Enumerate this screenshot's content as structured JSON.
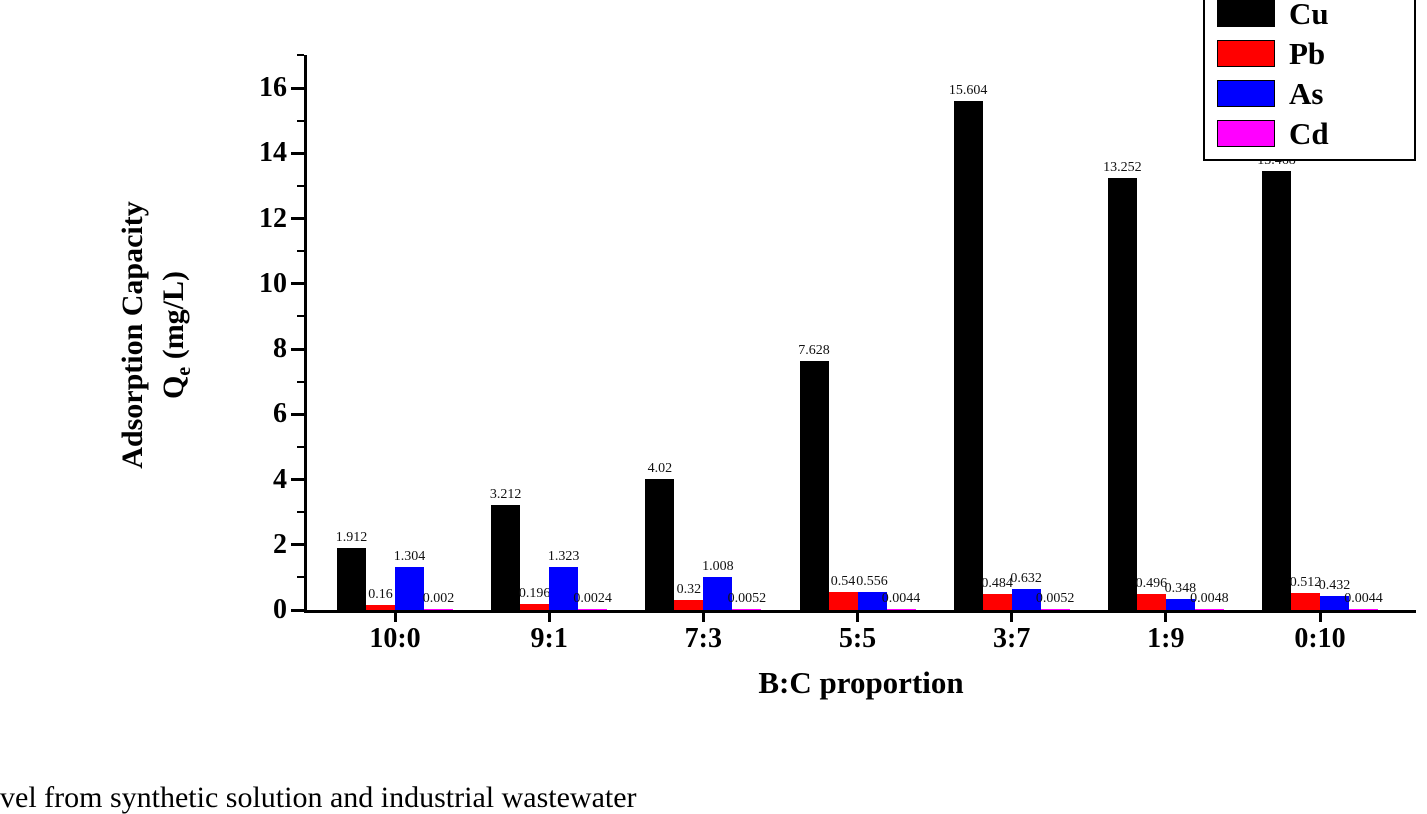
{
  "page": {
    "background": "#ffffff",
    "caption": "vel from synthetic solution and industrial wastewater"
  },
  "chart_data": {
    "type": "bar",
    "title": "",
    "xlabel": "B:C proportion",
    "ylabel_line1": "Adsorption Capacity",
    "ylabel_line2": {
      "main": "Q",
      "sub": "e",
      "rest": " (mg/L)"
    },
    "categories": [
      "10:0",
      "9:1",
      "7:3",
      "5:5",
      "3:7",
      "1:9",
      "0:10"
    ],
    "series": [
      {
        "name": "Cu",
        "color": "#000000",
        "values": [
          1.912,
          3.212,
          4.02,
          7.628,
          15.604,
          13.252,
          13.468
        ],
        "labels": [
          "1.912",
          "3.212",
          "4.02",
          "7.628",
          "15.604",
          "13.252",
          "13.468"
        ]
      },
      {
        "name": "Pb",
        "color": "#ff0000",
        "values": [
          0.16,
          0.196,
          0.32,
          0.54,
          0.484,
          0.496,
          0.512
        ],
        "labels": [
          "0.16",
          "0.196",
          "0.32",
          "0.54",
          "0.484",
          "0.496",
          "0.512"
        ]
      },
      {
        "name": "As",
        "color": "#0000ff",
        "values": [
          1.304,
          1.323,
          1.008,
          0.556,
          0.632,
          0.348,
          0.432
        ],
        "labels": [
          "1.304",
          "1.323",
          "1.008",
          "0.556",
          "0.632",
          "0.348",
          "0.432"
        ]
      },
      {
        "name": "Cd",
        "color": "#ff00ff",
        "values": [
          0.002,
          0.0024,
          0.0052,
          0.0044,
          0.0052,
          0.0048,
          0.0044
        ],
        "labels": [
          "0.002",
          "0.0024",
          "0.0052",
          "0.0044",
          "0.0052",
          "0.0048",
          "0.0044"
        ]
      }
    ],
    "ylim": [
      0,
      17
    ],
    "yticks": [
      0,
      2,
      4,
      6,
      8,
      10,
      12,
      14,
      16
    ],
    "yticks_minor": [
      1,
      3,
      5,
      7,
      9,
      11,
      13,
      15,
      17
    ],
    "grid": false,
    "legend_position": "top-right"
  }
}
